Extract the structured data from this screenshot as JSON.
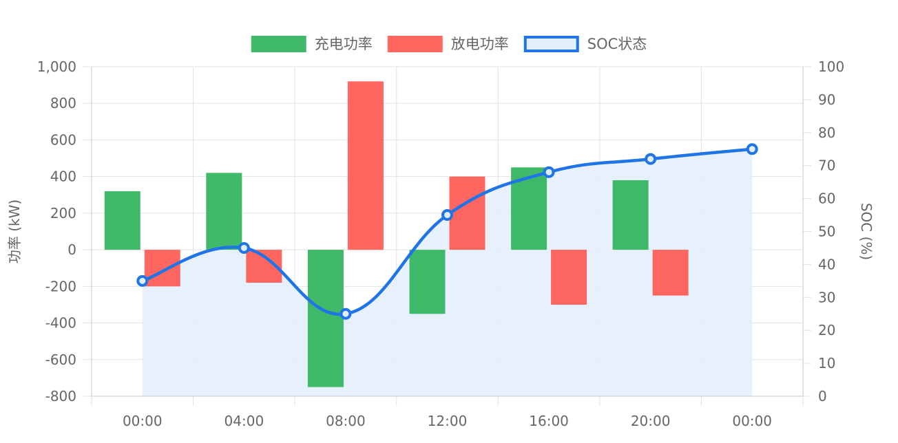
{
  "chart_data": {
    "type": "bar",
    "x_categories": [
      "00:00",
      "04:00",
      "08:00",
      "12:00",
      "16:00",
      "20:00",
      "00:00"
    ],
    "series": [
      {
        "name": "充电功率",
        "type": "bar",
        "axis": "left",
        "color": "#30b45c",
        "values": [
          320,
          420,
          -750,
          -350,
          450,
          380
        ]
      },
      {
        "name": "放电功率",
        "type": "bar",
        "axis": "left",
        "color": "#ff5a52",
        "values": [
          -200,
          -180,
          920,
          400,
          -300,
          -250
        ]
      },
      {
        "name": "SOC状态",
        "type": "area-line",
        "axis": "right",
        "color": "#1f74e6",
        "fill_color": "#e3eefb",
        "values": [
          35,
          45,
          25,
          55,
          68,
          72,
          75
        ]
      }
    ],
    "y_left": {
      "label": "功率 (kW)",
      "ylim": [
        -800,
        1000
      ],
      "ticks": [
        "1,000",
        "800",
        "600",
        "400",
        "200",
        "0",
        "-200",
        "-400",
        "-600",
        "-800"
      ]
    },
    "y_right": {
      "label": "SOC (%)",
      "ylim": [
        0,
        100
      ],
      "ticks": [
        "100",
        "90",
        "80",
        "70",
        "60",
        "50",
        "40",
        "30",
        "20",
        "10",
        "0"
      ]
    },
    "legend_position": "top-center",
    "grid": true
  }
}
